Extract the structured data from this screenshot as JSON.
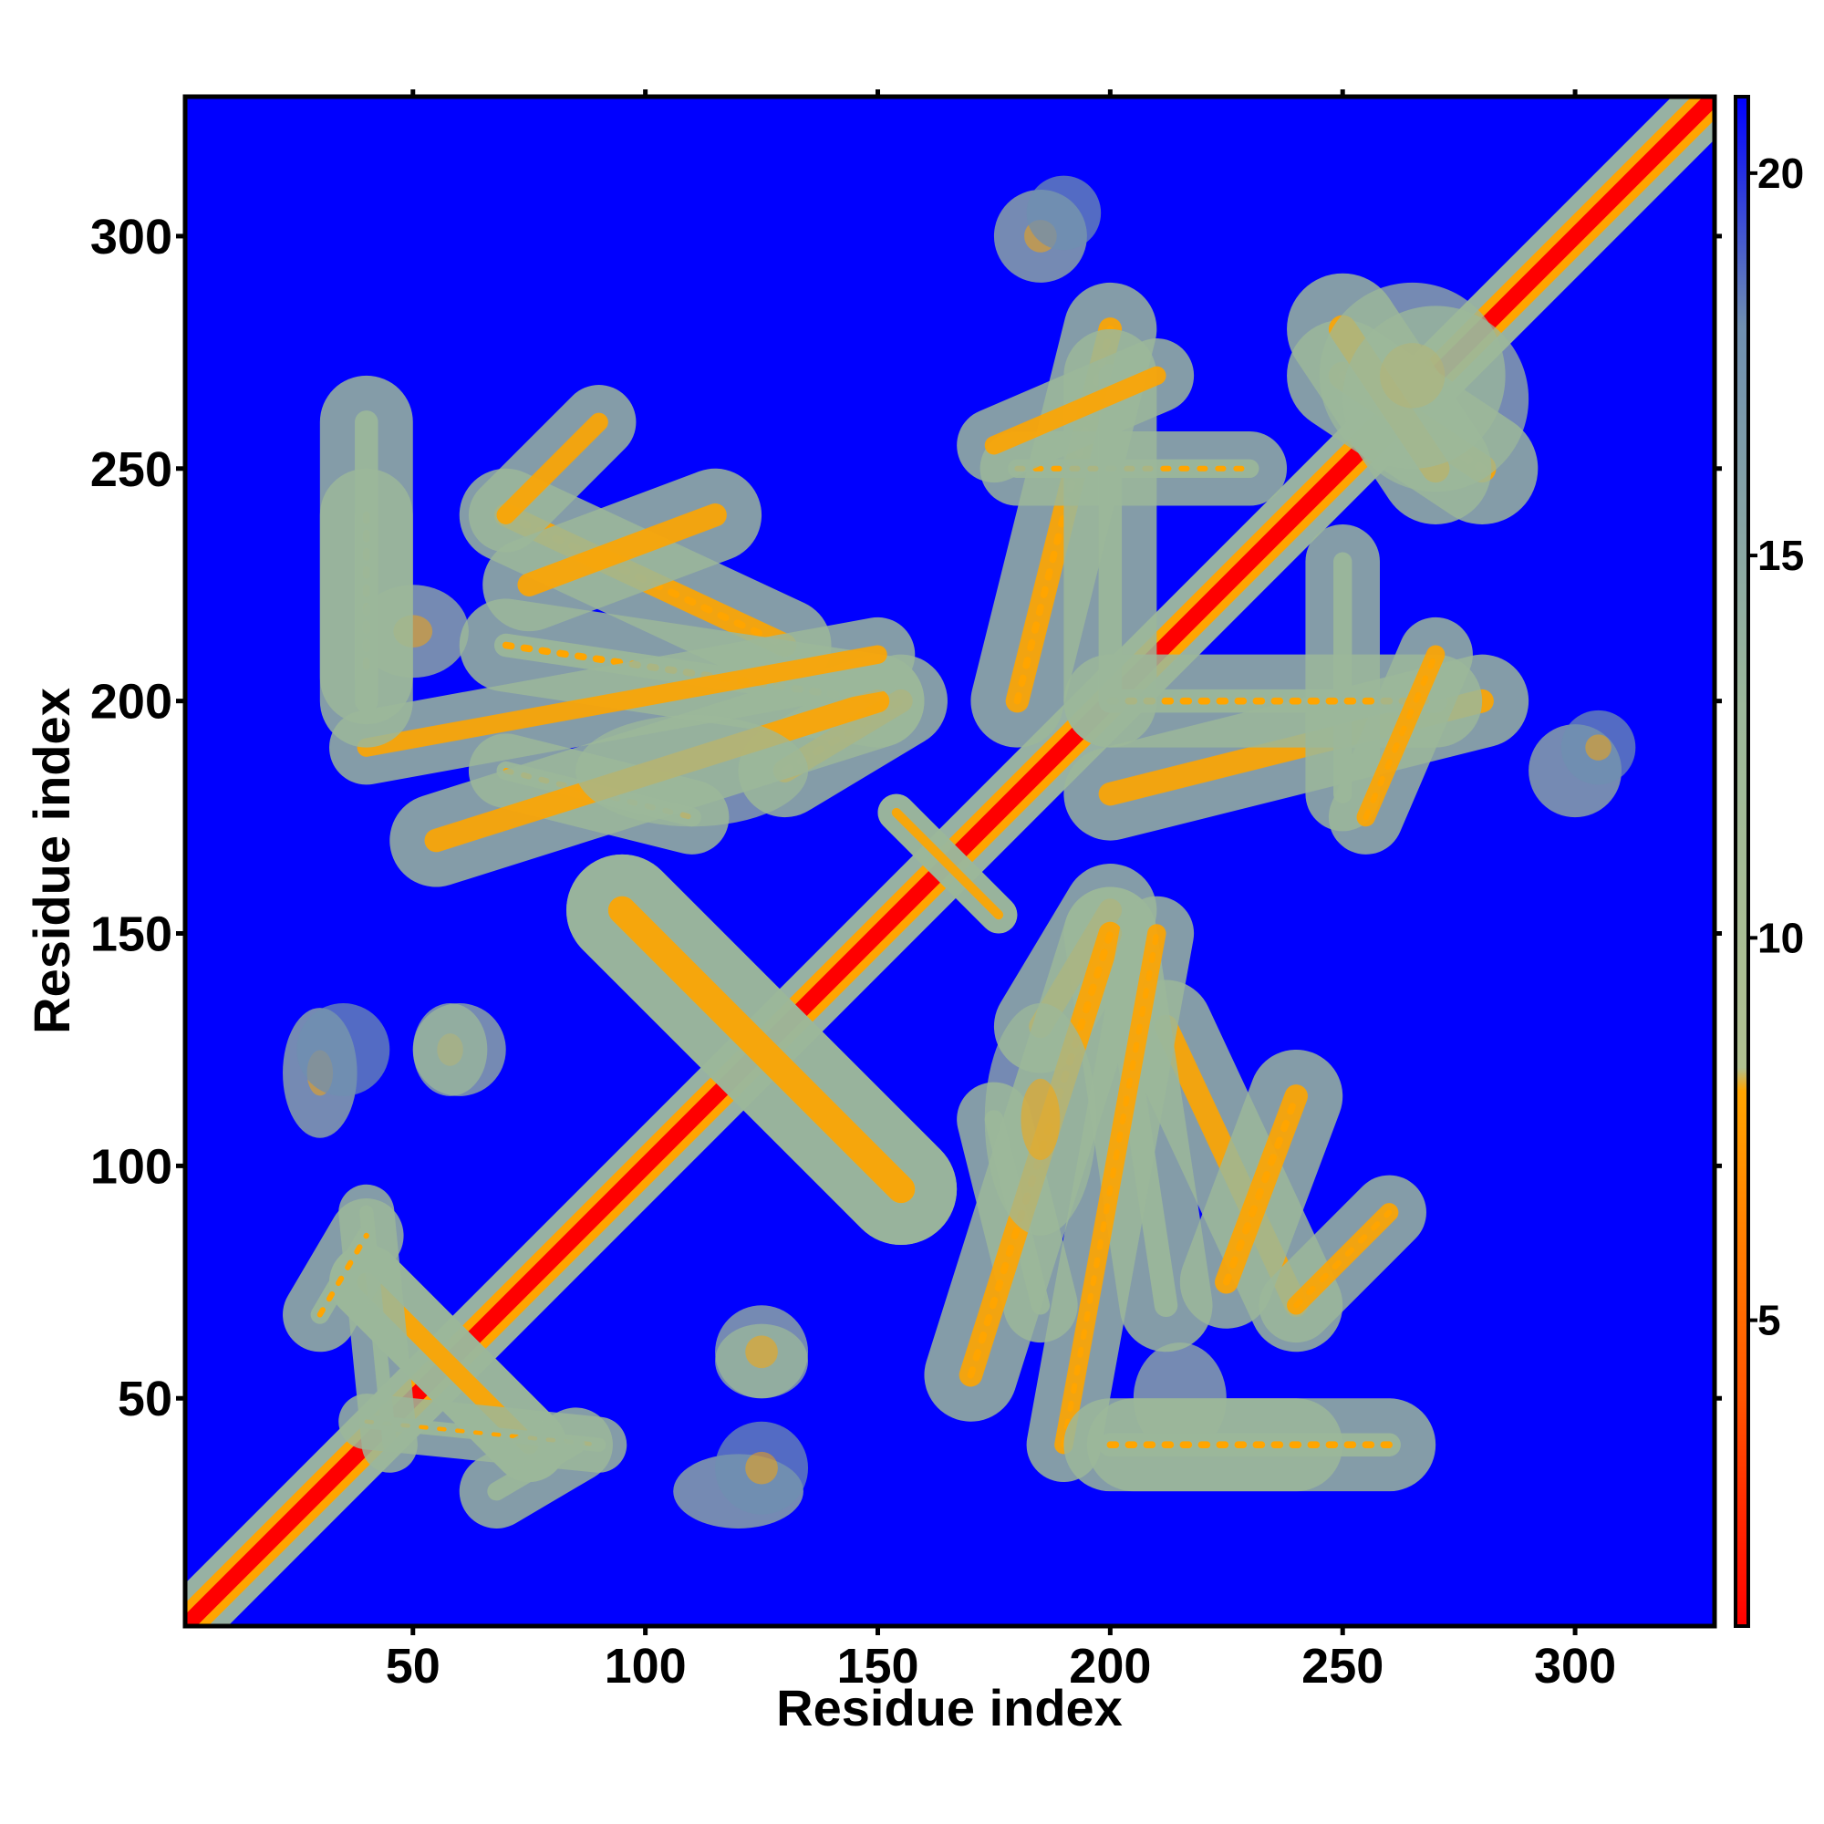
{
  "chart_data": {
    "type": "heatmap",
    "title": "",
    "xlabel": "Residue index",
    "ylabel": "Residue index",
    "xlim": [
      1,
      330
    ],
    "ylim": [
      1,
      330
    ],
    "x_ticks": [
      50,
      100,
      150,
      200,
      250,
      300
    ],
    "y_ticks": [
      50,
      100,
      150,
      200,
      250,
      300
    ],
    "x_tick_labels": [
      "50",
      "100",
      "150",
      "200",
      "250",
      "300"
    ],
    "y_tick_labels": [
      "50",
      "100",
      "150",
      "200",
      "250",
      "300"
    ],
    "grid": false,
    "colorbar": {
      "range": [
        1,
        21
      ],
      "ticks": [
        5,
        10,
        15,
        20
      ],
      "tick_labels": [
        "5",
        "10",
        "15",
        "20"
      ],
      "colors": [
        {
          "value": 1,
          "color": "#ff0000"
        },
        {
          "value": 4,
          "color": "#ff5500"
        },
        {
          "value": 8,
          "color": "#ffa500"
        },
        {
          "value": 8.3,
          "color": "#b0c090"
        },
        {
          "value": 13,
          "color": "#9cb89a"
        },
        {
          "value": 18,
          "color": "#6f8fb0"
        },
        {
          "value": 21,
          "color": "#0000ff"
        }
      ]
    },
    "background_value": 21,
    "background_color": "#0000ff",
    "contact_regions": [
      {
        "type": "diagonal",
        "from": 1,
        "to": 330,
        "value": 1,
        "halfwidth": 5
      },
      {
        "type": "segment",
        "x1": 154,
        "y1": 176,
        "x2": 176,
        "y2": 154,
        "value": 7,
        "halfwidth": 2
      },
      {
        "type": "segment",
        "x1": 95,
        "y1": 155,
        "x2": 155,
        "y2": 95,
        "value": 8,
        "halfwidth": 6
      },
      {
        "type": "segment",
        "x1": 40,
        "y1": 75,
        "x2": 75,
        "y2": 40,
        "value": 8,
        "halfwidth": 4
      },
      {
        "type": "segment",
        "x1": 40,
        "y1": 45,
        "x2": 90,
        "y2": 40,
        "value": 10,
        "halfwidth": 3
      },
      {
        "type": "segment",
        "x1": 30,
        "y1": 68,
        "x2": 40,
        "y2": 85,
        "value": 11,
        "halfwidth": 4
      },
      {
        "type": "blob",
        "x": 58,
        "y": 125,
        "rx": 8,
        "ry": 10,
        "value": 12
      },
      {
        "type": "blob",
        "x": 30,
        "y": 120,
        "rx": 8,
        "ry": 14,
        "value": 13
      },
      {
        "type": "blob",
        "x": 125,
        "y": 60,
        "rx": 10,
        "ry": 10,
        "value": 11
      },
      {
        "type": "blob",
        "x": 125,
        "y": 35,
        "rx": 10,
        "ry": 10,
        "value": 14
      },
      {
        "type": "segment",
        "x1": 70,
        "y1": 240,
        "x2": 130,
        "y2": 212,
        "value": 8,
        "halfwidth": 5
      },
      {
        "type": "segment",
        "x1": 70,
        "y1": 212,
        "x2": 150,
        "y2": 200,
        "value": 9,
        "halfwidth": 5
      },
      {
        "type": "segment",
        "x1": 70,
        "y1": 185,
        "x2": 110,
        "y2": 175,
        "value": 10,
        "halfwidth": 4
      },
      {
        "type": "segment",
        "x1": 130,
        "y1": 185,
        "x2": 155,
        "y2": 200,
        "value": 8,
        "halfwidth": 5
      },
      {
        "type": "segment",
        "x1": 40,
        "y1": 240,
        "x2": 40,
        "y2": 205,
        "value": 9,
        "halfwidth": 5
      },
      {
        "type": "blob",
        "x": 50,
        "y": 215,
        "rx": 12,
        "ry": 10,
        "value": 11
      },
      {
        "type": "segment",
        "x1": 170,
        "y1": 55,
        "x2": 200,
        "y2": 150,
        "value": 8,
        "halfwidth": 5
      },
      {
        "type": "segment",
        "x1": 190,
        "y1": 40,
        "x2": 210,
        "y2": 150,
        "value": 8,
        "halfwidth": 4
      },
      {
        "type": "segment",
        "x1": 225,
        "y1": 75,
        "x2": 240,
        "y2": 115,
        "value": 8,
        "halfwidth": 5
      },
      {
        "type": "segment",
        "x1": 240,
        "y1": 70,
        "x2": 260,
        "y2": 90,
        "value": 8,
        "halfwidth": 4
      },
      {
        "type": "segment",
        "x1": 200,
        "y1": 40,
        "x2": 260,
        "y2": 40,
        "value": 10,
        "halfwidth": 5
      },
      {
        "type": "blob",
        "x": 185,
        "y": 110,
        "rx": 12,
        "ry": 25,
        "value": 12
      },
      {
        "type": "segment",
        "x1": 180,
        "y1": 200,
        "x2": 200,
        "y2": 280,
        "value": 8,
        "halfwidth": 5
      },
      {
        "type": "segment",
        "x1": 180,
        "y1": 250,
        "x2": 230,
        "y2": 250,
        "value": 9,
        "halfwidth": 4
      },
      {
        "type": "segment",
        "x1": 200,
        "y1": 200,
        "x2": 270,
        "y2": 200,
        "value": 9,
        "halfwidth": 5
      },
      {
        "type": "segment",
        "x1": 255,
        "y1": 175,
        "x2": 270,
        "y2": 210,
        "value": 8,
        "halfwidth": 4
      },
      {
        "type": "segment",
        "x1": 250,
        "y1": 270,
        "x2": 280,
        "y2": 250,
        "value": 8,
        "halfwidth": 6
      },
      {
        "type": "blob",
        "x": 185,
        "y": 300,
        "rx": 10,
        "ry": 10,
        "value": 13
      },
      {
        "type": "blob",
        "x": 265,
        "y": 270,
        "rx": 20,
        "ry": 20,
        "value": 11
      },
      {
        "type": "blob",
        "x": 305,
        "y": 190,
        "rx": 8,
        "ry": 8,
        "value": 14
      }
    ]
  }
}
